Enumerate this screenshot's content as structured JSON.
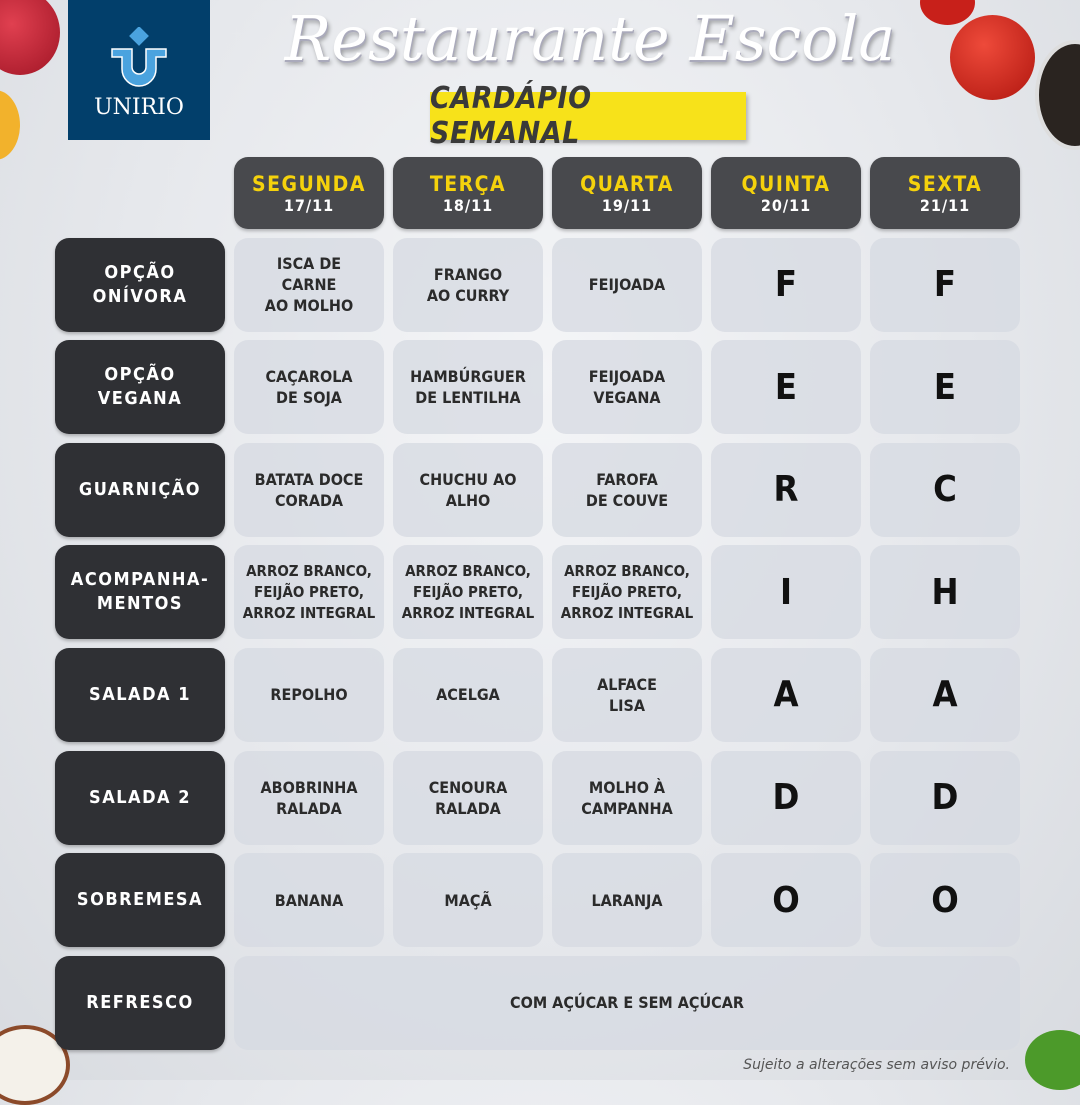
{
  "logo": {
    "text": "UNIRIO"
  },
  "title": "Restaurante Escola",
  "subtitle": "CARDÁPIO SEMANAL",
  "days": [
    {
      "name": "SEGUNDA",
      "date": "17/11"
    },
    {
      "name": "TERÇA",
      "date": "18/11"
    },
    {
      "name": "QUARTA",
      "date": "19/11"
    },
    {
      "name": "QUINTA",
      "date": "20/11"
    },
    {
      "name": "SEXTA",
      "date": "21/11"
    }
  ],
  "rows": [
    {
      "label": "OPÇÃO\nONÍVORA",
      "cells": [
        "ISCA DE\nCARNE\nAO MOLHO",
        "FRANGO\nAO CURRY",
        "FEIJOADA",
        "F",
        "F"
      ]
    },
    {
      "label": "OPÇÃO\nVEGANA",
      "cells": [
        "CAÇAROLA\nDE SOJA",
        "HAMBÚRGUER\nDE LENTILHA",
        "FEIJOADA\nVEGANA",
        "E",
        "E"
      ]
    },
    {
      "label": "GUARNIÇÃO",
      "cells": [
        "BATATA DOCE\nCORADA",
        "CHUCHU AO\nALHO",
        "FAROFA\nDE COUVE",
        "R",
        "C"
      ]
    },
    {
      "label": "ACOMPANHA-\nMENTOS",
      "cells": [
        "ARROZ BRANCO,\nFEIJÃO PRETO,\nARROZ INTEGRAL",
        "ARROZ BRANCO,\nFEIJÃO PRETO,\nARROZ INTEGRAL",
        "ARROZ BRANCO,\nFEIJÃO PRETO,\nARROZ INTEGRAL",
        "I",
        "H"
      ]
    },
    {
      "label": "SALADA 1",
      "cells": [
        "REPOLHO",
        "ACELGA",
        "ALFACE\nLISA",
        "A",
        "A"
      ]
    },
    {
      "label": "SALADA 2",
      "cells": [
        "ABOBRINHA\nRALADA",
        "CENOURA\nRALADA",
        "MOLHO À\nCAMPANHA",
        "D",
        "D"
      ]
    },
    {
      "label": "SOBREMESA",
      "cells": [
        "BANANA",
        "MAÇÃ",
        "LARANJA",
        "O",
        "O"
      ]
    }
  ],
  "refresco": {
    "label": "REFRESCO",
    "value": "COM AÇÚCAR E SEM AÇÚCAR"
  },
  "note": "Sujeito a alterações sem aviso prévio.",
  "colors": {
    "header_bg": "#48494d",
    "label_bg": "#2f3034",
    "day_text": "#f5d20c",
    "badge": "#f7e21a",
    "logo_bg": "#023f6b"
  }
}
